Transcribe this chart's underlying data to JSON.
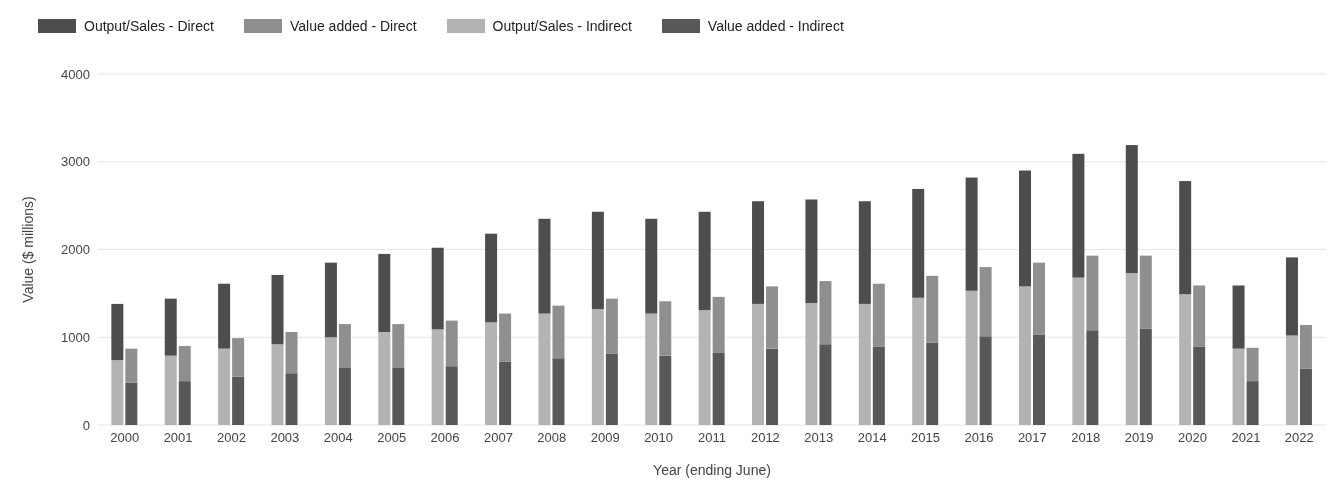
{
  "chart_data": {
    "type": "bar",
    "xlabel": "Year (ending June)",
    "ylabel": "Value ($ millions)",
    "categories": [
      "2000",
      "2001",
      "2002",
      "2003",
      "2004",
      "2005",
      "2006",
      "2007",
      "2008",
      "2009",
      "2010",
      "2011",
      "2012",
      "2013",
      "2014",
      "2015",
      "2016",
      "2017",
      "2018",
      "2019",
      "2020",
      "2021",
      "2022"
    ],
    "series": [
      {
        "name": "Output/Sales - Direct",
        "color": "#4d4d4d",
        "values": [
          640,
          650,
          740,
          790,
          850,
          890,
          930,
          1010,
          1080,
          1110,
          1080,
          1120,
          1170,
          1180,
          1170,
          1240,
          1290,
          1320,
          1410,
          1460,
          1290,
          720,
          890
        ],
        "base": [
          740,
          790,
          870,
          920,
          1000,
          1060,
          1090,
          1170,
          1270,
          1320,
          1270,
          1310,
          1380,
          1390,
          1380,
          1450,
          1530,
          1580,
          1680,
          1730,
          1490,
          870,
          1020
        ]
      },
      {
        "name": "Value added - Direct",
        "color": "#8f8f8f",
        "values": [
          390,
          400,
          440,
          470,
          500,
          500,
          520,
          550,
          600,
          630,
          620,
          640,
          710,
          720,
          720,
          760,
          790,
          820,
          850,
          830,
          700,
          380,
          500
        ],
        "base": [
          480,
          500,
          550,
          590,
          650,
          650,
          670,
          720,
          760,
          810,
          790,
          820,
          870,
          920,
          890,
          940,
          1010,
          1030,
          1080,
          1100,
          890,
          500,
          640
        ]
      },
      {
        "name": "Output/Sales - Indirect",
        "color": "#b3b3b3",
        "values": [
          740,
          790,
          870,
          920,
          1000,
          1060,
          1090,
          1170,
          1270,
          1320,
          1270,
          1310,
          1380,
          1390,
          1380,
          1450,
          1530,
          1580,
          1680,
          1730,
          1490,
          870,
          1020
        ]
      },
      {
        "name": "Value added - Indirect",
        "color": "#585858",
        "values": [
          480,
          500,
          550,
          590,
          650,
          650,
          670,
          720,
          760,
          810,
          790,
          820,
          870,
          920,
          890,
          940,
          1010,
          1030,
          1080,
          1100,
          890,
          500,
          640
        ]
      }
    ],
    "ylim": [
      0,
      4000
    ],
    "yticks": [
      0,
      1000,
      2000,
      3000,
      4000
    ],
    "grid": "y",
    "legend": "top left"
  }
}
